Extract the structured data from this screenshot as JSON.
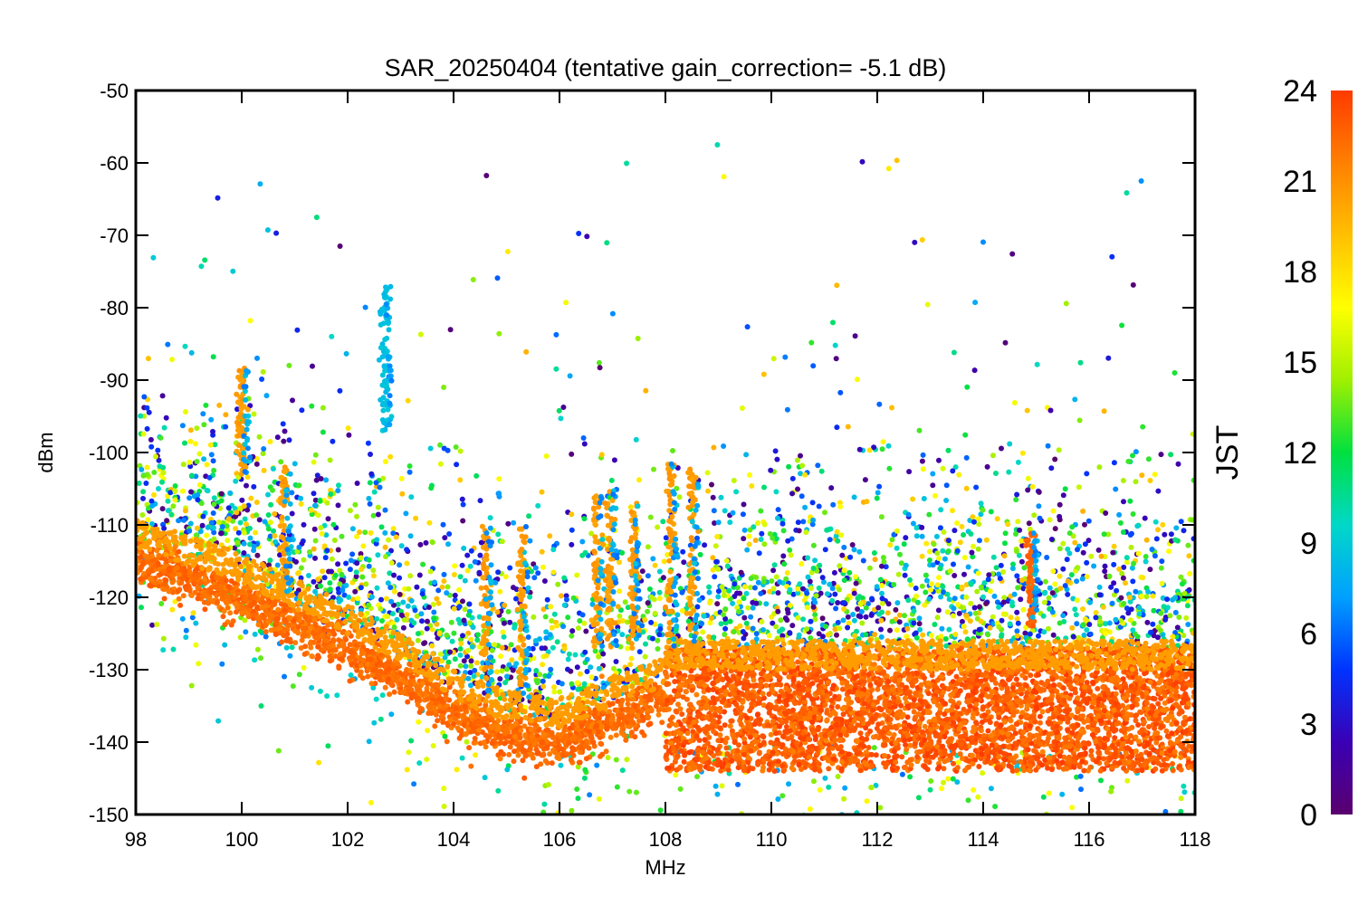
{
  "chart_data": {
    "type": "scatter",
    "title": "SAR_20250404 (tentative gain_correction= -5.1 dB)",
    "xlabel": "MHz",
    "ylabel": "dBm",
    "xlim": [
      98,
      118
    ],
    "ylim": [
      -150,
      -50
    ],
    "x_ticks": [
      "98",
      "100",
      "102",
      "104",
      "106",
      "108",
      "110",
      "112",
      "114",
      "116",
      "118"
    ],
    "y_ticks": [
      "-50",
      "-60",
      "-70",
      "-80",
      "-90",
      "-100",
      "-110",
      "-120",
      "-130",
      "-140",
      "-150"
    ],
    "colorbar": {
      "label": "JST",
      "range": [
        0,
        24
      ],
      "ticks": [
        "0",
        "3",
        "6",
        "9",
        "12",
        "15",
        "18",
        "21",
        "24"
      ],
      "colormap": [
        "#5a006e",
        "#3a00b4",
        "#0033ff",
        "#00a0ff",
        "#00d8c8",
        "#00e040",
        "#a0f000",
        "#ffff00",
        "#ffc000",
        "#ff8000",
        "#ff3a00"
      ]
    },
    "noise_floor": {
      "description_points_x": [
        98,
        100,
        102,
        103,
        104,
        105,
        106,
        107,
        108
      ],
      "description_points_y": [
        -115,
        -120,
        -127,
        -131,
        -136,
        -139,
        -140,
        -137,
        -134
      ],
      "jst": 23
    },
    "broadband_band": {
      "x_range": [
        108,
        118
      ],
      "y_range": [
        -144,
        -127
      ],
      "jst": 23
    },
    "strong_signals": [
      {
        "x": 100.0,
        "y_top": -88,
        "y_bottom": -103,
        "jst": 21
      },
      {
        "x": 100.8,
        "y_top": -102,
        "y_bottom": -120,
        "jst": 21
      },
      {
        "x": 102.7,
        "y_top": -77,
        "y_bottom": -97,
        "jst": 9
      },
      {
        "x": 104.6,
        "y_top": -110,
        "y_bottom": -133,
        "jst": 21
      },
      {
        "x": 105.3,
        "y_top": -110,
        "y_bottom": -134,
        "jst": 21
      },
      {
        "x": 106.7,
        "y_top": -106,
        "y_bottom": -127,
        "jst": 21
      },
      {
        "x": 106.95,
        "y_top": -105,
        "y_bottom": -127,
        "jst": 21
      },
      {
        "x": 107.4,
        "y_top": -107,
        "y_bottom": -127,
        "jst": 21
      },
      {
        "x": 108.1,
        "y_top": -101,
        "y_bottom": -127,
        "jst": 21
      },
      {
        "x": 108.5,
        "y_top": -102,
        "y_bottom": -127,
        "jst": 21
      },
      {
        "x": 114.9,
        "y_top": -111,
        "y_bottom": -124,
        "jst": 23
      }
    ]
  }
}
